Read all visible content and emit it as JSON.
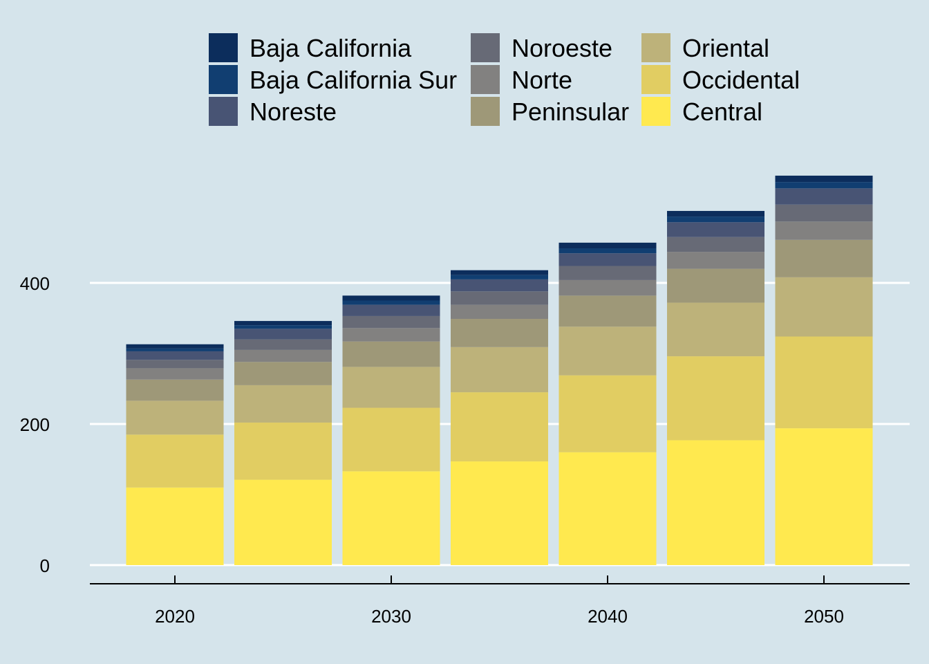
{
  "chart_data": {
    "type": "bar",
    "stacked": true,
    "x": [
      2020,
      2025,
      2030,
      2035,
      2040,
      2045,
      2050
    ],
    "xticks": [
      2020,
      2030,
      2040,
      2050
    ],
    "yticks": [
      0,
      200,
      400
    ],
    "ylim": [
      0,
      560
    ],
    "grid": "horizontal",
    "legend_position": "top",
    "background": "#d5e4eb",
    "series": [
      {
        "name": "Central",
        "color": "#ffe94f",
        "values": [
          110,
          121,
          133,
          147,
          160,
          177,
          194
        ]
      },
      {
        "name": "Occidental",
        "color": "#e1cd62",
        "values": [
          75,
          81,
          90,
          98,
          109,
          119,
          130
        ]
      },
      {
        "name": "Oriental",
        "color": "#bdb27a",
        "values": [
          48,
          53,
          58,
          64,
          69,
          76,
          84
        ]
      },
      {
        "name": "Peninsular",
        "color": "#9e9878",
        "values": [
          30,
          33,
          36,
          40,
          44,
          48,
          53
        ]
      },
      {
        "name": "Norte",
        "color": "#828180",
        "values": [
          16,
          17,
          19,
          20,
          22,
          24,
          26
        ]
      },
      {
        "name": "Noroeste",
        "color": "#676a76",
        "values": [
          12,
          15,
          17,
          19,
          20,
          21,
          24
        ]
      },
      {
        "name": "Noreste",
        "color": "#485474",
        "values": [
          12,
          15,
          16,
          17,
          18,
          21,
          23
        ]
      },
      {
        "name": "Baja California Sur",
        "color": "#113e71",
        "values": [
          4,
          5,
          6,
          6,
          7,
          8,
          9
        ]
      },
      {
        "name": "Baja California",
        "color": "#0c2d5c",
        "values": [
          6,
          6,
          7,
          7,
          8,
          8,
          9
        ]
      }
    ],
    "legend_order": [
      "Baja California",
      "Baja California Sur",
      "Noreste",
      "Noroeste",
      "Norte",
      "Peninsular",
      "Oriental",
      "Occidental",
      "Central"
    ]
  }
}
